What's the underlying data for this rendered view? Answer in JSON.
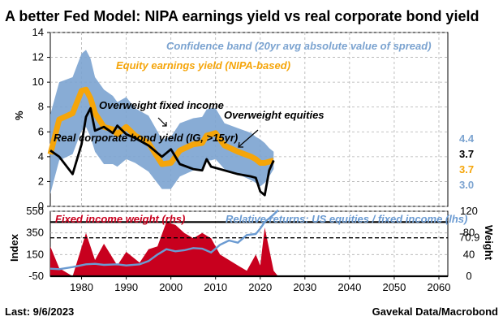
{
  "title": "A better Fed Model: NIPA earnings yield vs real corporate bond yield",
  "footer": {
    "left": "Last: 9/6/2023",
    "right": "Gavekal Data/Macrobond"
  },
  "colors": {
    "band": "#7ba3d0",
    "equity": "#f5a50a",
    "bond": "#000000",
    "fixed_income": "#c8001e",
    "relative": "#6b9bd2"
  },
  "chart_data": [
    {
      "type": "area",
      "ylabel": "%",
      "ylim": [
        0,
        14
      ],
      "yticks": [
        "0",
        "2",
        "4",
        "6",
        "8",
        "10",
        "12",
        "14"
      ],
      "grid": true,
      "annotations": [
        "Confidence band (20yr avg absolute value of spread)",
        "Equity earnings yield (NIPA-based)",
        "Overweight fixed income",
        "Overweight equities",
        "Real corporate bond yield (IG, >15yr)"
      ],
      "last_values": {
        "band_upper": "4.4",
        "bond": "3.7",
        "equity": "3.7",
        "band_lower": "3.0"
      },
      "x": [
        1973,
        1975,
        1978,
        1980,
        1981,
        1982,
        1983,
        1985,
        1987,
        1988,
        1990,
        1992,
        1995,
        1998,
        2000,
        2002,
        2005,
        2007,
        2008,
        2009,
        2010,
        2012,
        2015,
        2018,
        2019,
        2020,
        2021,
        2022,
        2023
      ],
      "series": [
        {
          "name": "Confidence band (20yr avg absolute value of spread)",
          "upper": [
            7.4,
            10.0,
            10.4,
            12.3,
            12.6,
            11.9,
            10.4,
            9.4,
            8.9,
            8.4,
            8.8,
            7.9,
            7.3,
            5.4,
            5.6,
            6.7,
            7.1,
            7.2,
            7.8,
            7.9,
            7.9,
            6.7,
            6.3,
            5.9,
            5.6,
            5.4,
            5.1,
            4.7,
            4.4
          ],
          "lower": [
            1.0,
            3.7,
            4.2,
            6.1,
            6.4,
            5.6,
            4.4,
            3.4,
            3.4,
            3.2,
            3.8,
            3.5,
            2.8,
            1.4,
            1.4,
            2.4,
            2.9,
            3.0,
            3.7,
            3.7,
            3.8,
            3.0,
            2.6,
            2.1,
            1.9,
            1.6,
            1.9,
            2.4,
            3.0
          ]
        },
        {
          "name": "Equity earnings yield (NIPA-based)",
          "values": [
            4.2,
            7.0,
            7.5,
            9.3,
            9.4,
            8.7,
            7.5,
            6.4,
            6.2,
            5.8,
            6.4,
            5.7,
            5.1,
            3.4,
            3.5,
            4.5,
            5.0,
            5.1,
            5.7,
            5.8,
            5.9,
            4.9,
            4.4,
            4.0,
            3.8,
            3.5,
            3.5,
            3.6,
            3.7
          ]
        },
        {
          "name": "Real corporate bond yield (IG, >15yr)",
          "values": [
            4.5,
            4.0,
            2.6,
            5.0,
            7.2,
            7.9,
            6.1,
            6.4,
            5.9,
            6.5,
            5.8,
            5.5,
            4.9,
            4.0,
            4.6,
            3.4,
            3.0,
            2.9,
            3.8,
            3.2,
            3.1,
            2.9,
            2.6,
            2.4,
            2.3,
            1.2,
            0.9,
            2.9,
            3.7
          ]
        }
      ]
    },
    {
      "type": "area",
      "ylabel_left": "Index",
      "ylabel_right": "Weight",
      "ylim_left": [
        -50,
        550
      ],
      "yticks_left": [
        "-50",
        "150",
        "350",
        "550"
      ],
      "ylim_right": [
        0,
        120
      ],
      "yticks_right": [
        "0",
        "40",
        "80",
        "120"
      ],
      "xlim": [
        1973,
        2062
      ],
      "xticks": [
        "1980",
        "1990",
        "2000",
        "2010",
        "2020",
        "2030",
        "2040",
        "2050",
        "2060"
      ],
      "grid": true,
      "annotations": [
        "Fixed income weight (rhs)",
        "Relative returns: US equities / fixed income (lhs)"
      ],
      "reference_levels_weight": [
        0,
        100
      ],
      "dashed_level_weight": 70.9,
      "dashed_level_label": "70.9",
      "x": [
        1973,
        1975,
        1978,
        1981,
        1983,
        1985,
        1988,
        1990,
        1993,
        1995,
        1997,
        1999,
        2001,
        2003,
        2005,
        2007,
        2009,
        2011,
        2013,
        2015,
        2017,
        2019,
        2020,
        2021,
        2023,
        2024
      ],
      "series": [
        {
          "name": "Fixed income weight (rhs)",
          "values": [
            55,
            15,
            0,
            80,
            30,
            60,
            20,
            45,
            25,
            50,
            55,
            100,
            95,
            80,
            70,
            80,
            70,
            40,
            30,
            20,
            10,
            40,
            20,
            90,
            10,
            0
          ]
        },
        {
          "name": "Relative returns: US equities / fixed income (lhs)",
          "values": [
            20,
            15,
            35,
            60,
            65,
            55,
            60,
            50,
            60,
            90,
            150,
            200,
            180,
            190,
            210,
            205,
            170,
            240,
            280,
            260,
            330,
            340,
            390,
            450,
            520,
            560
          ]
        }
      ]
    }
  ]
}
